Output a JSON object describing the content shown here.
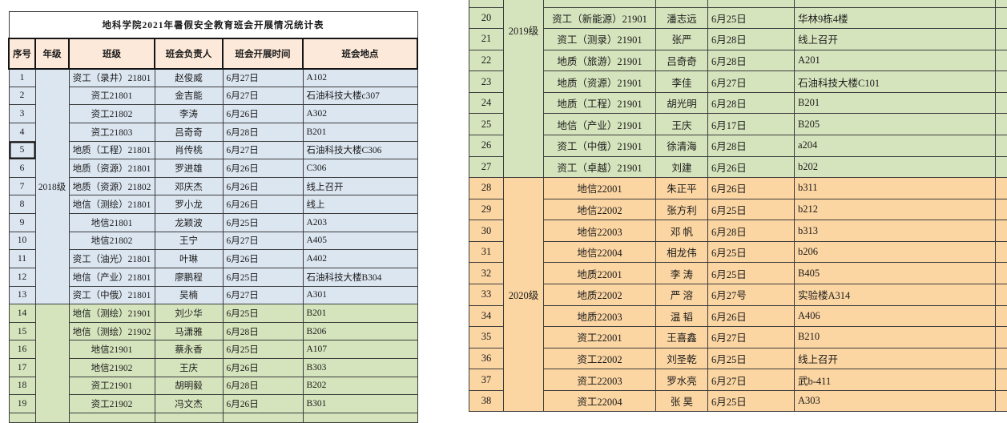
{
  "title": "地科学院2021年暑假安全教育班会开展情况统计表",
  "columns": [
    "序号",
    "年级",
    "班级",
    "班会负责人",
    "班会开展时间",
    "班会地点"
  ],
  "colors": {
    "header_bg": "#fde9d9",
    "bands": {
      "b2018": "#dce6f1",
      "b2019": "#d6e4bd",
      "b2020": "#fbd5a2"
    },
    "border": "#3c3c3c"
  },
  "left_table": {
    "active_cell_no": "5",
    "grade_groups": [
      {
        "label": "2018级",
        "band": "b2018",
        "rows": 13
      },
      {
        "label": "",
        "band": "b2019",
        "rows": 6
      }
    ],
    "rows": [
      {
        "no": "1",
        "band": "b2018",
        "cls": "资工（录井）21801",
        "person": "赵俊威",
        "time": "6月27日",
        "place": "A102"
      },
      {
        "no": "2",
        "band": "b2018",
        "cls": "资工21801",
        "person": "金吉能",
        "time": "6月27日",
        "place": "石油科技大楼c307"
      },
      {
        "no": "3",
        "band": "b2018",
        "cls": "资工21802",
        "person": "李涛",
        "time": "6月26日",
        "place": "A302"
      },
      {
        "no": "4",
        "band": "b2018",
        "cls": "资工21803",
        "person": "吕奇奇",
        "time": "6月28日",
        "place": "B201"
      },
      {
        "no": "5",
        "band": "b2018",
        "cls": "地质（工程）21801",
        "person": "肖传桃",
        "time": "6月27日",
        "place": "石油科技大楼C306"
      },
      {
        "no": "6",
        "band": "b2018",
        "cls": "地质（资源）21801",
        "person": "罗进雄",
        "time": "6月26日",
        "place": "C306"
      },
      {
        "no": "7",
        "band": "b2018",
        "cls": "地质（资源）21802",
        "person": "邓庆杰",
        "time": "6月26日",
        "place": "线上召开"
      },
      {
        "no": "8",
        "band": "b2018",
        "cls": "地信（测绘）21801",
        "person": "罗小龙",
        "time": "6月26日",
        "place": "线上"
      },
      {
        "no": "9",
        "band": "b2018",
        "cls": "地信21801",
        "person": "龙颖波",
        "time": "6月25日",
        "place": "A203"
      },
      {
        "no": "10",
        "band": "b2018",
        "cls": "地信21802",
        "person": "王宁",
        "time": "6月27日",
        "place": "A405"
      },
      {
        "no": "11",
        "band": "b2018",
        "cls": "资工（油光）21801",
        "person": "叶琳",
        "time": "6月26日",
        "place": "A402"
      },
      {
        "no": "12",
        "band": "b2018",
        "cls": "地信（产业）21801",
        "person": "廖鹏程",
        "time": "6月25日",
        "place": "石油科技大楼B304"
      },
      {
        "no": "13",
        "band": "b2018",
        "cls": "资工（中俄）21801",
        "person": "吴楠",
        "time": "6月27日",
        "place": "A301"
      },
      {
        "no": "14",
        "band": "b2019",
        "cls": "地信（测绘）21901",
        "person": "刘少华",
        "time": "6月25日",
        "place": "B201"
      },
      {
        "no": "15",
        "band": "b2019",
        "cls": "地信（测绘）21902",
        "person": "马潇雅",
        "time": "6月28日",
        "place": "B206"
      },
      {
        "no": "16",
        "band": "b2019",
        "cls": "地信21901",
        "person": "蔡永香",
        "time": "6月25日",
        "place": "A107"
      },
      {
        "no": "17",
        "band": "b2019",
        "cls": "地信21902",
        "person": "王庆",
        "time": "6月26日",
        "place": "B303"
      },
      {
        "no": "18",
        "band": "b2019",
        "cls": "资工21901",
        "person": "胡明毅",
        "time": "6月28日",
        "place": "B202"
      },
      {
        "no": "19",
        "band": "b2019",
        "cls": "资工21902",
        "person": "冯文杰",
        "time": "6月26日",
        "place": "B301"
      }
    ]
  },
  "right_table": {
    "grade_groups": [
      {
        "label": "2019级",
        "band": "b2019",
        "rows": 8,
        "valign": "top"
      },
      {
        "label": "2020级",
        "band": "b2020",
        "rows": 11
      }
    ],
    "rows": [
      {
        "no": "20",
        "band": "b2019",
        "cls": "资工（新能源）21901",
        "person": "潘志远",
        "time": "6月25日",
        "place": "华林9栋4楼"
      },
      {
        "no": "21",
        "band": "b2019",
        "cls": "资工（测录）21901",
        "person": "张严",
        "time": "6月28日",
        "place": "线上召开"
      },
      {
        "no": "22",
        "band": "b2019",
        "cls": "地质（旅游）21901",
        "person": "吕奇奇",
        "time": "6月28日",
        "place": "A201"
      },
      {
        "no": "23",
        "band": "b2019",
        "cls": "地质（资源）21901",
        "person": "李佳",
        "time": "6月27日",
        "place": "石油科技大楼C101"
      },
      {
        "no": "24",
        "band": "b2019",
        "cls": "地质（工程）21901",
        "person": "胡光明",
        "time": "6月28日",
        "place": "B201"
      },
      {
        "no": "25",
        "band": "b2019",
        "cls": "地信（产业）21901",
        "person": "王庆",
        "time": "6月17日",
        "place": "B205"
      },
      {
        "no": "26",
        "band": "b2019",
        "cls": "资工（中俄）21901",
        "person": "徐清海",
        "time": "6月28日",
        "place": "a204"
      },
      {
        "no": "27",
        "band": "b2019",
        "cls": "资工（卓越）21901",
        "person": "刘建",
        "time": "6月26日",
        "place": "b202"
      },
      {
        "no": "28",
        "band": "b2020",
        "cls": "地信22001",
        "person": "朱正平",
        "time": "6月26日",
        "place": "b311"
      },
      {
        "no": "29",
        "band": "b2020",
        "cls": "地信22002",
        "person": "张方利",
        "time": "6月25日",
        "place": "b212"
      },
      {
        "no": "30",
        "band": "b2020",
        "cls": "地信22003",
        "person": "邓 帆",
        "time": "6月28日",
        "place": "b313"
      },
      {
        "no": "31",
        "band": "b2020",
        "cls": "地信22004",
        "person": "相龙伟",
        "time": "6月25日",
        "place": "b206"
      },
      {
        "no": "32",
        "band": "b2020",
        "cls": "地质22001",
        "person": "李 涛",
        "time": "6月25日",
        "place": "B405"
      },
      {
        "no": "33",
        "band": "b2020",
        "cls": "地质22002",
        "person": "严 溶",
        "time": "6月27号",
        "place": "实验楼A314"
      },
      {
        "no": "34",
        "band": "b2020",
        "cls": "地质22003",
        "person": "温 韬",
        "time": "6月26日",
        "place": "A406"
      },
      {
        "no": "35",
        "band": "b2020",
        "cls": "资工22001",
        "person": "王喜鑫",
        "time": "6月27日",
        "place": "B210"
      },
      {
        "no": "36",
        "band": "b2020",
        "cls": "资工22002",
        "person": "刘圣乾",
        "time": "6月25日",
        "place": "线上召开"
      },
      {
        "no": "37",
        "band": "b2020",
        "cls": "资工22003",
        "person": "罗水亮",
        "time": "6月27日",
        "place": "武b-411"
      },
      {
        "no": "38",
        "band": "b2020",
        "cls": "资工22004",
        "person": "张 昊",
        "time": "6月25日",
        "place": "A303"
      }
    ]
  }
}
